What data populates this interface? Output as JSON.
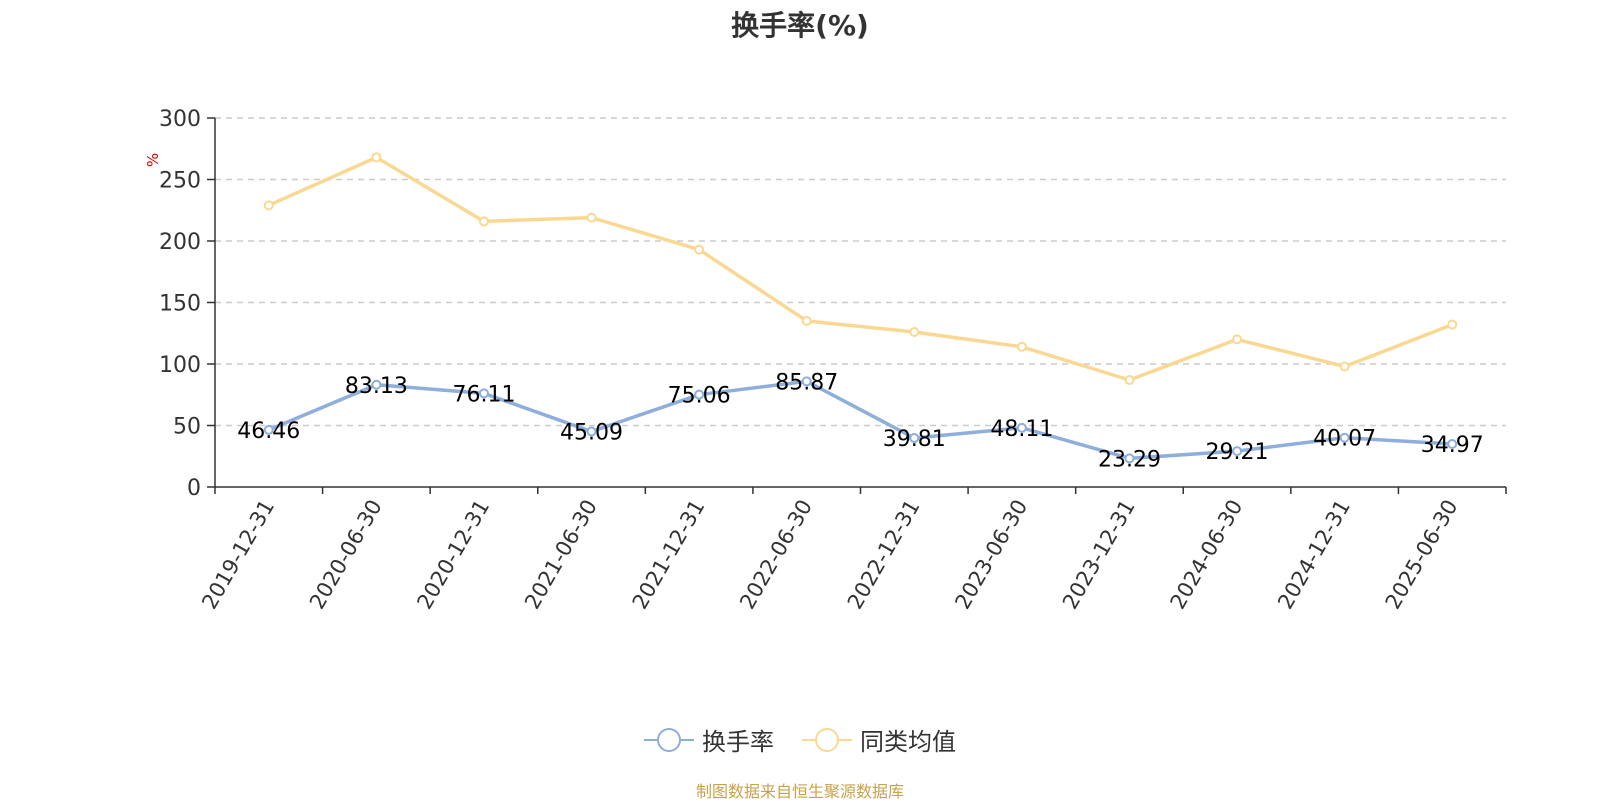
{
  "chart_data": {
    "type": "line",
    "title": "换手率(%)",
    "ylabel": "%",
    "ylim": [
      0,
      300
    ],
    "yticks": [
      0,
      50,
      100,
      150,
      200,
      250,
      300
    ],
    "grid": true,
    "legend_position": "bottom-center",
    "categories": [
      "2019-12-31",
      "2020-06-30",
      "2020-12-31",
      "2021-06-30",
      "2021-12-31",
      "2022-06-30",
      "2022-12-31",
      "2023-06-30",
      "2023-12-31",
      "2024-06-30",
      "2024-12-31",
      "2025-06-30"
    ],
    "series": [
      {
        "name": "换手率",
        "color": "#8eaedb",
        "values": [
          46.46,
          83.13,
          76.11,
          45.09,
          75.06,
          85.87,
          39.81,
          48.11,
          23.29,
          29.21,
          40.07,
          34.97
        ],
        "labels": [
          "46.46",
          "83.13",
          "76.11",
          "45.09",
          "75.06",
          "85.87",
          "39.81",
          "48.11",
          "23.29",
          "29.21",
          "40.07",
          "34.97"
        ]
      },
      {
        "name": "同类均值",
        "color": "#fad892",
        "values": [
          229,
          268,
          216,
          219,
          193,
          135,
          126,
          114,
          87,
          120,
          98,
          132
        ]
      }
    ]
  },
  "footer": "制图数据来自恒生聚源数据库"
}
